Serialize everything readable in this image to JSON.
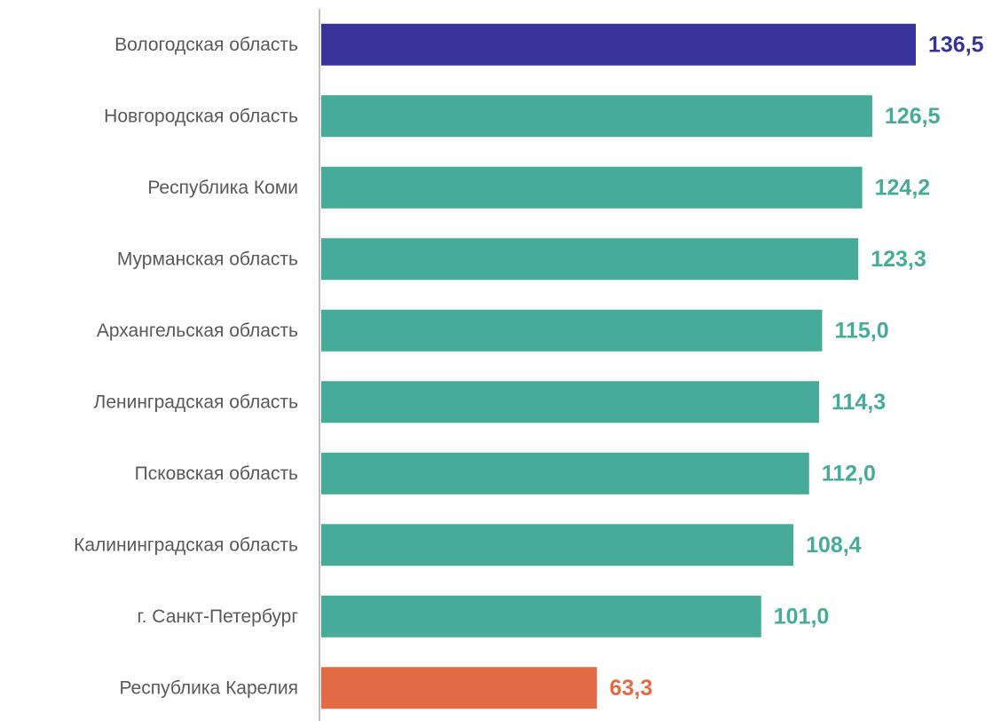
{
  "chart_data": {
    "type": "bar",
    "orientation": "horizontal",
    "categories": [
      "Вологодская область",
      "Новгородская область",
      "Республика Коми",
      "Мурманская область",
      "Архангельская область",
      "Ленинградская область",
      "Псковская область",
      "Калининградская область",
      "г. Санкт-Петербург",
      "Республика Карелия"
    ],
    "values": [
      136.5,
      126.5,
      124.2,
      123.3,
      115.0,
      114.3,
      112.0,
      108.4,
      101.0,
      63.3
    ],
    "value_labels": [
      "136,5",
      "126,5",
      "124,2",
      "123,3",
      "115,0",
      "114,3",
      "112,0",
      "108,4",
      "101,0",
      "63,3"
    ],
    "bar_colors": [
      "#37339a",
      "#46ab98",
      "#46ab98",
      "#46ab98",
      "#46ab98",
      "#46ab98",
      "#46ab98",
      "#46ab98",
      "#46ab98",
      "#e26b45"
    ],
    "title": "",
    "xlabel": "",
    "ylabel": "",
    "xlim": [
      0,
      150
    ],
    "grid": false,
    "legend": "none",
    "axis_color": "#bfbfbf",
    "category_label_color": "#595959"
  }
}
